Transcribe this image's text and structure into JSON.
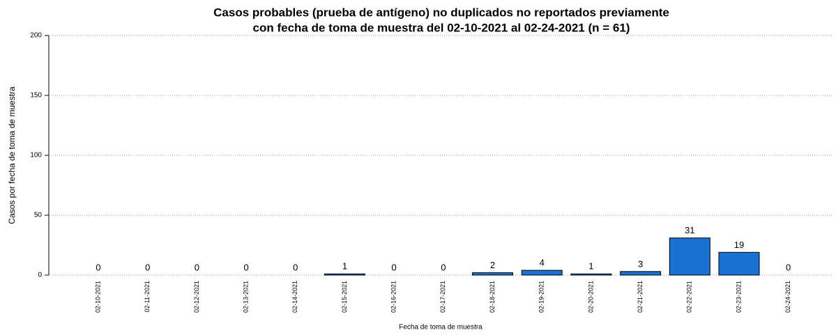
{
  "chart_data": {
    "type": "bar",
    "title": [
      "Casos probables (prueba de antígeno) no duplicados no reportados previamente",
      "con fecha de toma de muestra del 02-10-2021 al 02-24-2021 (n = 61)"
    ],
    "x_label": "Fecha de toma de muestra",
    "y_label": "Casos por fecha de toma de muestra",
    "categories": [
      "02-10-2021",
      "02-11-2021",
      "02-12-2021",
      "02-13-2021",
      "02-14-2021",
      "02-15-2021",
      "02-16-2021",
      "02-17-2021",
      "02-18-2021",
      "02-19-2021",
      "02-20-2021",
      "02-21-2021",
      "02-22-2021",
      "02-23-2021",
      "02-24-2021"
    ],
    "values": [
      0,
      0,
      0,
      0,
      0,
      1,
      0,
      0,
      2,
      4,
      1,
      3,
      31,
      19,
      0
    ],
    "color": "#1a73d0",
    "ylim": [
      0,
      200
    ],
    "yticks": [
      0,
      50,
      100,
      150,
      200
    ],
    "grid": true
  }
}
